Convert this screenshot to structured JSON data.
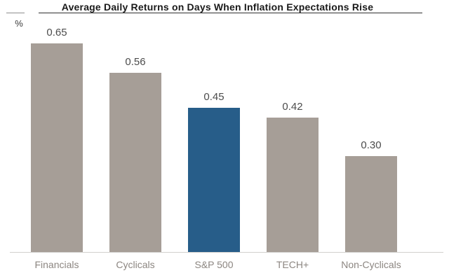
{
  "header": {
    "title": "Average Daily Returns on Days When Inflation Expectations Rise",
    "unit_label": "%"
  },
  "chart_data": {
    "type": "bar",
    "title": "Average Daily Returns on Days When Inflation Expectations Rise",
    "xlabel": "",
    "ylabel": "%",
    "categories": [
      "Financials",
      "Cyclicals",
      "S&P 500",
      "TECH+",
      "Non-Cyclicals"
    ],
    "values": [
      0.65,
      0.56,
      0.45,
      0.42,
      0.3
    ],
    "value_labels": [
      "0.65",
      "0.56",
      "0.45",
      "0.42",
      "0.30"
    ],
    "ylim": [
      0,
      0.7
    ],
    "grid": false,
    "legend": null,
    "axis_line": "bottom-only",
    "highlighted_category": "S&P 500",
    "highlight_index": 2,
    "colors": {
      "bar_default": "#a69e97",
      "bar_highlight": "#275d89",
      "value_label": "#4c4c4c",
      "category_label": "#8c8681",
      "title": "#1a1a1a",
      "title_rule": "#2f2f2f",
      "unit_tick": "#8f8f8f",
      "unit_label_color": "#3a3a3a",
      "baseline": "#d2d0cd"
    }
  }
}
